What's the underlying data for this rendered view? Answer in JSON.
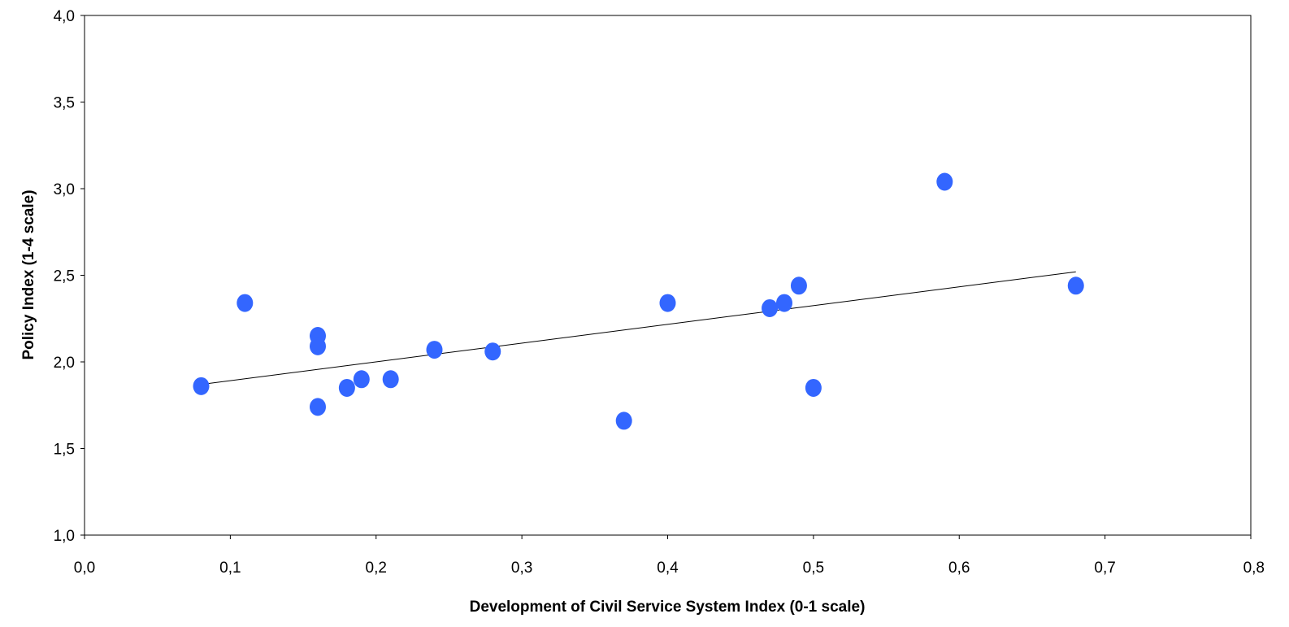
{
  "chart_data": {
    "type": "scatter",
    "title": "",
    "xlabel": "Development of Civil Service System Index (0-1 scale)",
    "ylabel": "Policy Index (1-4 scale)",
    "xlim": [
      0.0,
      0.8
    ],
    "ylim": [
      1.0,
      4.0
    ],
    "x_ticks": [
      0.0,
      0.1,
      0.2,
      0.3,
      0.4,
      0.5,
      0.6,
      0.7,
      0.8
    ],
    "y_ticks": [
      1.0,
      1.5,
      2.0,
      2.5,
      3.0,
      3.5,
      4.0
    ],
    "x_tick_labels": [
      "0,0",
      "0,1",
      "0,2",
      "0,3",
      "0,4",
      "0,5",
      "0,6",
      "0,7",
      "0,8"
    ],
    "y_tick_labels": [
      "1,0",
      "1,5",
      "2,0",
      "2,5",
      "3,0",
      "3,5",
      "4,0"
    ],
    "grid": false,
    "legend": "none",
    "point_color": "#3366ff",
    "trendline_color": "#000000",
    "series": [
      {
        "points": [
          {
            "x": 0.08,
            "y": 1.86
          },
          {
            "x": 0.11,
            "y": 2.34
          },
          {
            "x": 0.16,
            "y": 2.15
          },
          {
            "x": 0.16,
            "y": 2.09
          },
          {
            "x": 0.16,
            "y": 1.74
          },
          {
            "x": 0.18,
            "y": 1.85
          },
          {
            "x": 0.19,
            "y": 1.9
          },
          {
            "x": 0.21,
            "y": 1.9
          },
          {
            "x": 0.24,
            "y": 2.07
          },
          {
            "x": 0.28,
            "y": 2.06
          },
          {
            "x": 0.37,
            "y": 1.66
          },
          {
            "x": 0.4,
            "y": 2.34
          },
          {
            "x": 0.47,
            "y": 2.31
          },
          {
            "x": 0.48,
            "y": 2.34
          },
          {
            "x": 0.49,
            "y": 2.44
          },
          {
            "x": 0.5,
            "y": 1.85
          },
          {
            "x": 0.59,
            "y": 3.04
          },
          {
            "x": 0.68,
            "y": 2.44
          }
        ]
      }
    ],
    "trendline": {
      "type": "linear",
      "from": {
        "x": 0.08,
        "y": 1.87
      },
      "to": {
        "x": 0.68,
        "y": 2.52
      }
    }
  }
}
